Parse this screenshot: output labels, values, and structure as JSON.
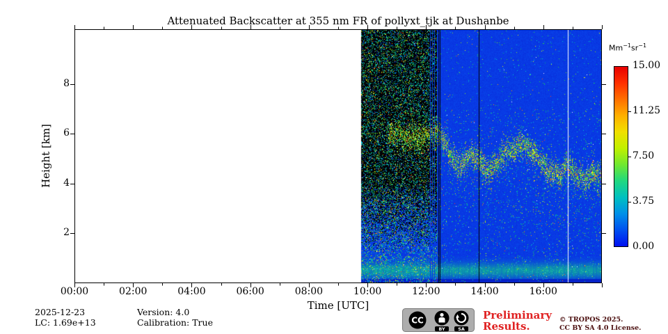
{
  "chart_data": {
    "type": "heatmap",
    "title": "Attenuated Backscatter at 355 nm FR of pollyxt_tjk at Dushanbe",
    "xlabel": "Time [UTC]",
    "ylabel": "Height [km]",
    "x_range_hours": [
      0,
      18
    ],
    "x_major_tick_hours": [
      0,
      2,
      4,
      6,
      8,
      10,
      12,
      14,
      16
    ],
    "x_major_tick_labels": [
      "00:00",
      "02:00",
      "04:00",
      "06:00",
      "08:00",
      "10:00",
      "12:00",
      "14:00",
      "16:00"
    ],
    "x_minor_tick_hours": [
      1,
      3,
      5,
      7,
      9,
      11,
      13,
      15,
      17
    ],
    "y_range_km": [
      0,
      10.2
    ],
    "y_major_ticks_km": [
      2,
      4,
      6,
      8
    ],
    "grid": false,
    "colorbar": {
      "unit_base1": "Mm",
      "unit_exp1": "−1",
      "unit_base2": "sr",
      "unit_exp2": "−1",
      "min": 0,
      "max": 15,
      "tick_values": [
        0,
        3.75,
        7.5,
        11.25,
        15
      ],
      "tick_labels": [
        "0.00",
        "3.75",
        "7.50",
        "11.25",
        "15.00"
      ],
      "colormap_stops": [
        "#0010f0",
        "#0050f0",
        "#0090e8",
        "#00c0c0",
        "#20d880",
        "#70e830",
        "#c0f000",
        "#f0e000",
        "#ffb000",
        "#ff7000",
        "#ff3000",
        "#e80000"
      ]
    },
    "coverage": {
      "no_data_before_hour": 9.76,
      "raw_black_zone_until_hour": 12.35,
      "data_end_hour": 18,
      "no_data_color": "#ffffff",
      "raw_zone_base_color": "#020207",
      "background_color": "#083ae4",
      "background_value_mm_sr": 0
    },
    "features": {
      "boundary_layer": {
        "center_km": 0.52,
        "top_km": 1.1,
        "approx_value_mm_sr": 3
      },
      "aerosol_layer": {
        "approx_value_mm_sr": 6,
        "points_hour_km": [
          [
            10.7,
            5.9
          ],
          [
            11.1,
            6.0
          ],
          [
            11.5,
            5.8
          ],
          [
            11.9,
            5.9
          ],
          [
            12.2,
            6.0
          ],
          [
            12.45,
            6.15
          ],
          [
            12.7,
            5.5
          ],
          [
            12.95,
            4.95
          ],
          [
            13.2,
            4.7
          ],
          [
            13.5,
            5.2
          ],
          [
            13.8,
            4.85
          ],
          [
            14.1,
            4.5
          ],
          [
            14.4,
            4.85
          ],
          [
            14.7,
            5.3
          ],
          [
            15.0,
            5.45
          ],
          [
            15.3,
            5.65
          ],
          [
            15.6,
            5.3
          ],
          [
            15.9,
            4.85
          ],
          [
            16.2,
            4.45
          ],
          [
            16.5,
            4.3
          ],
          [
            16.8,
            4.7
          ],
          [
            17.1,
            4.45
          ],
          [
            17.4,
            4.2
          ],
          [
            17.7,
            4.45
          ],
          [
            18.0,
            4.3
          ]
        ]
      },
      "artifact_lines": [
        {
          "hour": 12.13,
          "style": "blue"
        },
        {
          "hour": 12.2,
          "style": "blue"
        },
        {
          "hour": 12.27,
          "style": "blue"
        },
        {
          "hour": 12.42,
          "style": "dark"
        },
        {
          "hour": 12.47,
          "style": "dark"
        },
        {
          "hour": 13.8,
          "style": "dark"
        },
        {
          "hour": 16.83,
          "style": "white"
        }
      ]
    }
  },
  "footer": {
    "date": "2025-12-23",
    "lc": "LC: 1.69e+13",
    "version": "Version: 4.0",
    "calibration": "Calibration: True"
  },
  "badges": {
    "preliminary_line1": "Preliminary",
    "preliminary_line2": "Results.",
    "preliminary_color": "#e02222",
    "copyright_line1": "© TROPOS 2025.",
    "copyright_line2": "CC BY SA 4.0 License.",
    "cc": {
      "cc": "CC",
      "by": "BY",
      "sa": "SA"
    }
  }
}
